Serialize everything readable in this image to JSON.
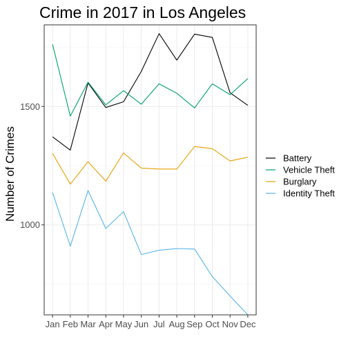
{
  "chart_data": {
    "type": "line",
    "title": "Crime in 2017 in Los Angeles",
    "xlabel": "",
    "ylabel": "Number of Crimes",
    "categories": [
      "Jan",
      "Feb",
      "Mar",
      "Apr",
      "May",
      "Jun",
      "Jul",
      "Aug",
      "Sep",
      "Oct",
      "Nov",
      "Dec"
    ],
    "ylim": [
      620,
      1845
    ],
    "y_ticks": [
      1000,
      1500
    ],
    "y_tick_labels": [
      "1000",
      "1500"
    ],
    "grid": true,
    "legend_placement": "right",
    "series": [
      {
        "name": "Battery",
        "color": "#000000",
        "values": [
          1372,
          1316,
          1600,
          1496,
          1520,
          1648,
          1808,
          1696,
          1806,
          1792,
          1558,
          1505
        ]
      },
      {
        "name": "Vehicle Theft",
        "color": "#009E73",
        "values": [
          1763,
          1459,
          1603,
          1507,
          1567,
          1510,
          1596,
          1556,
          1494,
          1596,
          1550,
          1618
        ]
      },
      {
        "name": "Burglary",
        "color": "#E69F00",
        "values": [
          1302,
          1172,
          1267,
          1185,
          1304,
          1240,
          1236,
          1236,
          1331,
          1322,
          1270,
          1286
        ]
      },
      {
        "name": "Identity Theft",
        "color": "#56B4E9",
        "values": [
          1137,
          910,
          1145,
          985,
          1056,
          875,
          893,
          900,
          898,
          782,
          700,
          620
        ]
      }
    ]
  }
}
